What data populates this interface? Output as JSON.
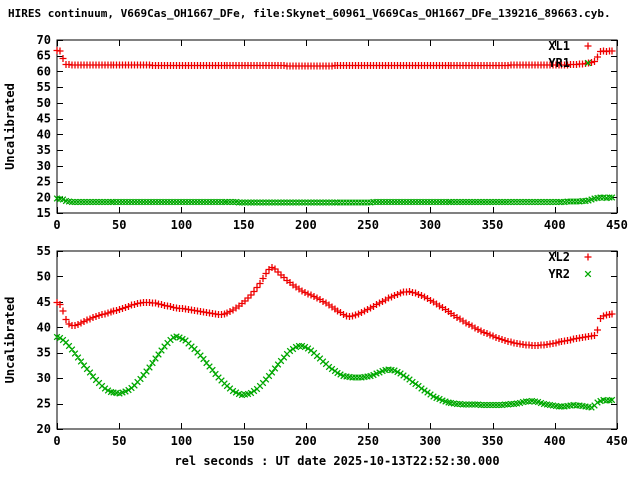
{
  "title": "HIRES continuum, V669Cas_OH1667_DFe, file:Skynet_60961_V669Cas_OH1667_DFe_139216_89663.cyb.",
  "colors": {
    "background": "#ffffff",
    "axis": "#000000",
    "series_red": "#ee0000",
    "series_green": "#00a800"
  },
  "chart_data": [
    {
      "type": "scatter",
      "position": "top",
      "xlabel": "",
      "ylabel": "Uncalibrated",
      "xlim": [
        0,
        450
      ],
      "ylim": [
        15,
        70
      ],
      "xticks": [
        0,
        50,
        100,
        150,
        200,
        250,
        300,
        350,
        400,
        450
      ],
      "yticks": [
        15,
        20,
        25,
        30,
        35,
        40,
        45,
        50,
        55,
        60,
        65,
        70
      ],
      "grid": false,
      "legend_position": "top-right",
      "marker_step": 2.4,
      "series": [
        {
          "name": "XL1",
          "marker": "plus",
          "color": "#ee0000",
          "points": [
            [
              0,
              66.6
            ],
            [
              2,
              66.5
            ],
            [
              4,
              66.3
            ],
            [
              5,
              63.5
            ],
            [
              7,
              62.3
            ],
            [
              12,
              62.0
            ],
            [
              60,
              62.0
            ],
            [
              120,
              61.9
            ],
            [
              170,
              61.9
            ],
            [
              200,
              61.7
            ],
            [
              215,
              61.8
            ],
            [
              260,
              61.9
            ],
            [
              320,
              61.9
            ],
            [
              380,
              62.0
            ],
            [
              410,
              62.1
            ],
            [
              420,
              62.3
            ],
            [
              426,
              62.6
            ],
            [
              430,
              62.9
            ],
            [
              433,
              63.3
            ],
            [
              434,
              64.2
            ],
            [
              436,
              66.3
            ],
            [
              439,
              66.5
            ],
            [
              442,
              66.4
            ],
            [
              446,
              66.5
            ]
          ]
        },
        {
          "name": "YR1",
          "marker": "cross",
          "color": "#00a800",
          "points": [
            [
              0,
              19.6
            ],
            [
              3,
              19.5
            ],
            [
              5,
              19.2
            ],
            [
              8,
              18.7
            ],
            [
              12,
              18.5
            ],
            [
              80,
              18.5
            ],
            [
              160,
              18.4
            ],
            [
              240,
              18.4
            ],
            [
              320,
              18.5
            ],
            [
              390,
              18.5
            ],
            [
              415,
              18.6
            ],
            [
              424,
              18.8
            ],
            [
              428,
              19.1
            ],
            [
              431,
              19.5
            ],
            [
              434,
              19.8
            ],
            [
              438,
              19.9
            ],
            [
              442,
              19.8
            ],
            [
              446,
              19.9
            ]
          ]
        }
      ]
    },
    {
      "type": "scatter",
      "position": "bottom",
      "xlabel": "rel seconds : UT date 2025-10-13T22:52:30.000",
      "ylabel": "Uncalibrated",
      "xlim": [
        0,
        450
      ],
      "ylim": [
        20,
        55
      ],
      "xticks": [
        0,
        50,
        100,
        150,
        200,
        250,
        300,
        350,
        400,
        450
      ],
      "yticks": [
        20,
        25,
        30,
        35,
        40,
        45,
        50,
        55
      ],
      "grid": false,
      "legend_position": "top-right",
      "marker_step": 2.4,
      "series": [
        {
          "name": "XL2",
          "marker": "plus",
          "color": "#ee0000",
          "points": [
            [
              0,
              44.9
            ],
            [
              2,
              44.7
            ],
            [
              4,
              43.8
            ],
            [
              6,
              42.3
            ],
            [
              8,
              41.0
            ],
            [
              11,
              40.4
            ],
            [
              14,
              40.3
            ],
            [
              18,
              40.7
            ],
            [
              23,
              41.3
            ],
            [
              29,
              41.9
            ],
            [
              35,
              42.4
            ],
            [
              42,
              42.9
            ],
            [
              49,
              43.4
            ],
            [
              56,
              44.0
            ],
            [
              62,
              44.5
            ],
            [
              68,
              44.8
            ],
            [
              74,
              44.9
            ],
            [
              80,
              44.7
            ],
            [
              86,
              44.3
            ],
            [
              92,
              44.0
            ],
            [
              99,
              43.7
            ],
            [
              106,
              43.5
            ],
            [
              113,
              43.2
            ],
            [
              120,
              42.9
            ],
            [
              126,
              42.7
            ],
            [
              131,
              42.5
            ],
            [
              136,
              42.7
            ],
            [
              141,
              43.3
            ],
            [
              146,
              44.1
            ],
            [
              151,
              45.1
            ],
            [
              156,
              46.3
            ],
            [
              160,
              47.5
            ],
            [
              164,
              48.9
            ],
            [
              167,
              50.2
            ],
            [
              170,
              51.2
            ],
            [
              172,
              51.8
            ],
            [
              174,
              51.7
            ],
            [
              177,
              51.0
            ],
            [
              181,
              50.1
            ],
            [
              185,
              49.2
            ],
            [
              190,
              48.2
            ],
            [
              195,
              47.4
            ],
            [
              201,
              46.6
            ],
            [
              207,
              46.0
            ],
            [
              213,
              45.2
            ],
            [
              219,
              44.3
            ],
            [
              225,
              43.3
            ],
            [
              230,
              42.6
            ],
            [
              234,
              42.1
            ],
            [
              238,
              42.2
            ],
            [
              243,
              42.7
            ],
            [
              249,
              43.4
            ],
            [
              255,
              44.2
            ],
            [
              261,
              45.0
            ],
            [
              267,
              45.8
            ],
            [
              273,
              46.4
            ],
            [
              278,
              46.9
            ],
            [
              283,
              47.0
            ],
            [
              288,
              46.7
            ],
            [
              294,
              46.1
            ],
            [
              300,
              45.3
            ],
            [
              306,
              44.4
            ],
            [
              312,
              43.5
            ],
            [
              318,
              42.5
            ],
            [
              324,
              41.6
            ],
            [
              330,
              40.7
            ],
            [
              336,
              39.9
            ],
            [
              342,
              39.1
            ],
            [
              348,
              38.5
            ],
            [
              354,
              37.9
            ],
            [
              360,
              37.4
            ],
            [
              366,
              37.0
            ],
            [
              372,
              36.7
            ],
            [
              378,
              36.5
            ],
            [
              384,
              36.4
            ],
            [
              390,
              36.5
            ],
            [
              396,
              36.7
            ],
            [
              402,
              37.0
            ],
            [
              408,
              37.3
            ],
            [
              414,
              37.6
            ],
            [
              420,
              37.9
            ],
            [
              425,
              38.1
            ],
            [
              430,
              38.3
            ],
            [
              433,
              38.5
            ],
            [
              435,
              39.9
            ],
            [
              437,
              41.9
            ],
            [
              440,
              42.4
            ],
            [
              443,
              42.5
            ],
            [
              446,
              42.6
            ]
          ]
        },
        {
          "name": "YR2",
          "marker": "cross",
          "color": "#00a800",
          "points": [
            [
              0,
              38.1
            ],
            [
              3,
              37.9
            ],
            [
              6,
              37.3
            ],
            [
              10,
              36.2
            ],
            [
              14,
              35.0
            ],
            [
              18,
              33.7
            ],
            [
              22,
              32.4
            ],
            [
              26,
              31.2
            ],
            [
              30,
              30.0
            ],
            [
              34,
              28.9
            ],
            [
              38,
              28.0
            ],
            [
              42,
              27.4
            ],
            [
              46,
              27.1
            ],
            [
              50,
              27.0
            ],
            [
              54,
              27.2
            ],
            [
              58,
              27.7
            ],
            [
              62,
              28.5
            ],
            [
              66,
              29.5
            ],
            [
              70,
              30.7
            ],
            [
              74,
              32.0
            ],
            [
              78,
              33.4
            ],
            [
              82,
              34.8
            ],
            [
              86,
              36.1
            ],
            [
              90,
              37.2
            ],
            [
              93,
              37.9
            ],
            [
              96,
              38.2
            ],
            [
              99,
              38.0
            ],
            [
              103,
              37.4
            ],
            [
              107,
              36.5
            ],
            [
              112,
              35.3
            ],
            [
              117,
              33.9
            ],
            [
              122,
              32.4
            ],
            [
              127,
              30.9
            ],
            [
              132,
              29.5
            ],
            [
              137,
              28.4
            ],
            [
              141,
              27.6
            ],
            [
              145,
              27.0
            ],
            [
              149,
              26.7
            ],
            [
              153,
              26.8
            ],
            [
              157,
              27.2
            ],
            [
              161,
              27.9
            ],
            [
              165,
              28.9
            ],
            [
              169,
              30.0
            ],
            [
              173,
              31.2
            ],
            [
              177,
              32.5
            ],
            [
              181,
              33.7
            ],
            [
              185,
              34.8
            ],
            [
              189,
              35.7
            ],
            [
              193,
              36.2
            ],
            [
              196,
              36.4
            ],
            [
              199,
              36.2
            ],
            [
              203,
              35.6
            ],
            [
              207,
              34.8
            ],
            [
              211,
              33.9
            ],
            [
              215,
              33.0
            ],
            [
              219,
              32.1
            ],
            [
              223,
              31.4
            ],
            [
              227,
              30.8
            ],
            [
              231,
              30.4
            ],
            [
              235,
              30.2
            ],
            [
              240,
              30.1
            ],
            [
              245,
              30.1
            ],
            [
              250,
              30.3
            ],
            [
              255,
              30.7
            ],
            [
              260,
              31.2
            ],
            [
              264,
              31.6
            ],
            [
              268,
              31.7
            ],
            [
              272,
              31.4
            ],
            [
              276,
              30.9
            ],
            [
              281,
              30.1
            ],
            [
              286,
              29.2
            ],
            [
              291,
              28.3
            ],
            [
              296,
              27.4
            ],
            [
              301,
              26.6
            ],
            [
              306,
              26.0
            ],
            [
              311,
              25.5
            ],
            [
              316,
              25.1
            ],
            [
              322,
              24.9
            ],
            [
              330,
              24.8
            ],
            [
              338,
              24.8
            ],
            [
              346,
              24.7
            ],
            [
              354,
              24.7
            ],
            [
              362,
              24.8
            ],
            [
              369,
              25.0
            ],
            [
              375,
              25.3
            ],
            [
              381,
              25.5
            ],
            [
              386,
              25.3
            ],
            [
              392,
              24.9
            ],
            [
              398,
              24.6
            ],
            [
              404,
              24.4
            ],
            [
              410,
              24.5
            ],
            [
              416,
              24.7
            ],
            [
              421,
              24.6
            ],
            [
              426,
              24.4
            ],
            [
              430,
              24.2
            ],
            [
              433,
              24.9
            ],
            [
              436,
              25.5
            ],
            [
              440,
              25.7
            ],
            [
              443,
              25.6
            ],
            [
              446,
              25.7
            ]
          ]
        }
      ]
    }
  ]
}
